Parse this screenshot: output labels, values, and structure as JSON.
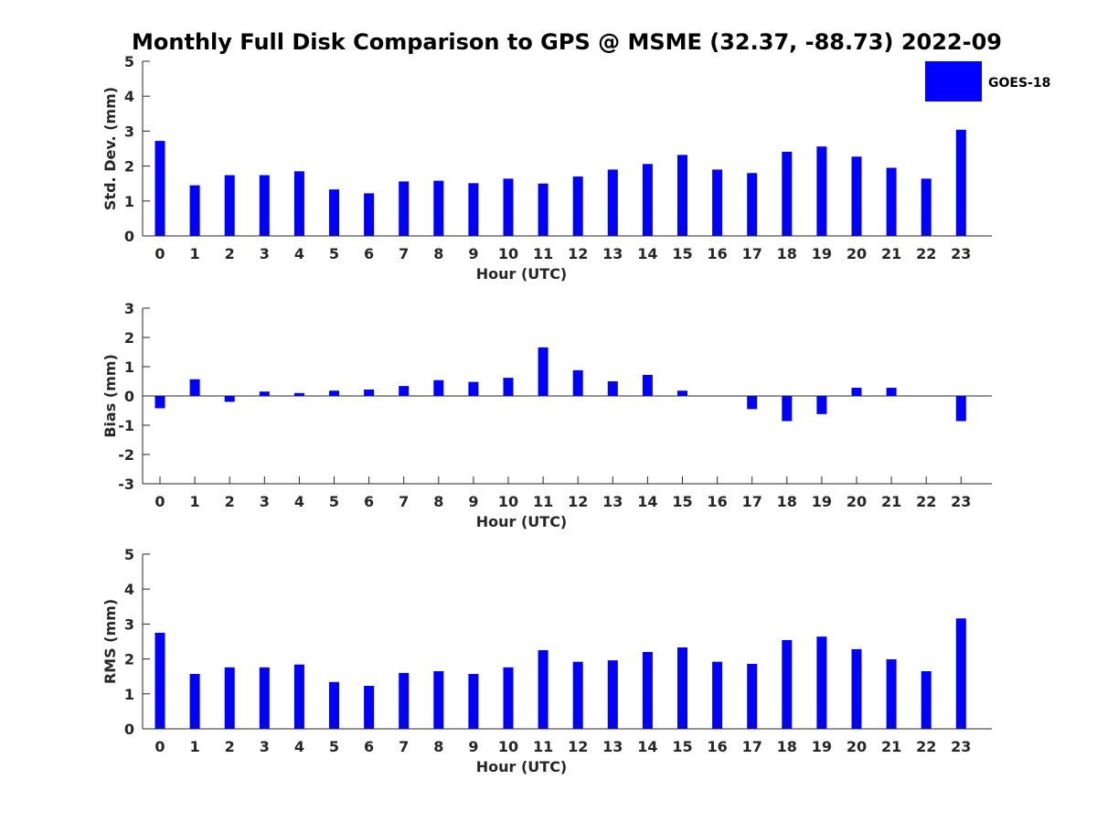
{
  "title": "Monthly Full Disk Comparison to GPS @ MSME (32.37, -88.73) 2022-09",
  "legend": {
    "label": "GOES-18",
    "color": "#0000ff",
    "placement": "top-right"
  },
  "chart_data": [
    {
      "type": "bar",
      "ylabel": "Std. Dev. (mm)",
      "xlabel": "Hour (UTC)",
      "ylim": [
        0,
        5
      ],
      "yticks": [
        0,
        1,
        2,
        3,
        4,
        5
      ],
      "categories": [
        "0",
        "1",
        "2",
        "3",
        "4",
        "5",
        "6",
        "7",
        "8",
        "9",
        "10",
        "11",
        "12",
        "13",
        "14",
        "15",
        "16",
        "17",
        "18",
        "19",
        "20",
        "21",
        "22",
        "23"
      ],
      "series": [
        {
          "name": "GOES-18",
          "color": "#0000ff",
          "values": [
            2.72,
            1.45,
            1.74,
            1.74,
            1.85,
            1.33,
            1.22,
            1.56,
            1.58,
            1.51,
            1.64,
            1.5,
            1.7,
            1.9,
            2.06,
            2.32,
            1.9,
            1.8,
            2.41,
            2.56,
            2.27,
            1.95,
            1.64,
            3.04
          ]
        }
      ]
    },
    {
      "type": "bar",
      "ylabel": "Bias (mm)",
      "xlabel": "Hour (UTC)",
      "ylim": [
        -3,
        3
      ],
      "yticks": [
        -3,
        -2,
        -1,
        0,
        1,
        2,
        3
      ],
      "zero_line": true,
      "categories": [
        "0",
        "1",
        "2",
        "3",
        "4",
        "5",
        "6",
        "7",
        "8",
        "9",
        "10",
        "11",
        "12",
        "13",
        "14",
        "15",
        "16",
        "17",
        "18",
        "19",
        "20",
        "21",
        "22",
        "23"
      ],
      "series": [
        {
          "name": "GOES-18",
          "color": "#0000ff",
          "values": [
            -0.42,
            0.57,
            -0.2,
            0.15,
            0.1,
            0.18,
            0.22,
            0.34,
            0.54,
            0.48,
            0.62,
            1.66,
            0.88,
            0.5,
            0.72,
            0.18,
            0.0,
            -0.45,
            -0.86,
            -0.62,
            0.28,
            0.28,
            0.0,
            -0.86
          ]
        }
      ]
    },
    {
      "type": "bar",
      "ylabel": "RMS (mm)",
      "xlabel": "Hour (UTC)",
      "ylim": [
        0,
        5
      ],
      "yticks": [
        0,
        1,
        2,
        3,
        4,
        5
      ],
      "categories": [
        "0",
        "1",
        "2",
        "3",
        "4",
        "5",
        "6",
        "7",
        "8",
        "9",
        "10",
        "11",
        "12",
        "13",
        "14",
        "15",
        "16",
        "17",
        "18",
        "19",
        "20",
        "21",
        "22",
        "23"
      ],
      "series": [
        {
          "name": "GOES-18",
          "color": "#0000ff",
          "values": [
            2.75,
            1.57,
            1.76,
            1.76,
            1.84,
            1.34,
            1.23,
            1.6,
            1.65,
            1.57,
            1.76,
            2.25,
            1.92,
            1.96,
            2.2,
            2.33,
            1.92,
            1.86,
            2.54,
            2.64,
            2.28,
            1.99,
            1.65,
            3.16
          ]
        }
      ]
    }
  ]
}
